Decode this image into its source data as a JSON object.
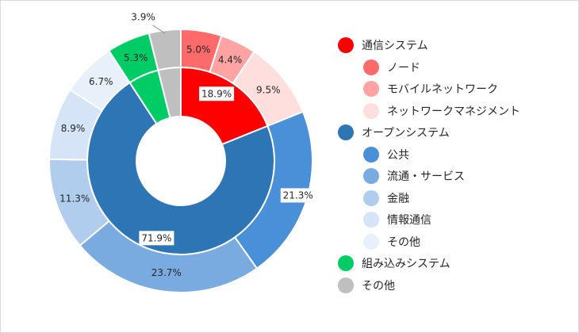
{
  "chart_data": {
    "type": "pie",
    "subtype": "nested-donut",
    "inner_ring": {
      "slices": [
        {
          "name": "通信システム",
          "value": 18.9,
          "label": "18.9%",
          "color": "#ff0000"
        },
        {
          "name": "オープンシステム",
          "value": 71.9,
          "label": "71.9%",
          "color": "#2e75b6"
        },
        {
          "name": "組み込みシステム",
          "value": 5.3,
          "label": "",
          "color": "#00cc66"
        },
        {
          "name": "その他",
          "value": 3.9,
          "label": "",
          "color": "#bfbfbf"
        }
      ]
    },
    "outer_ring": {
      "slices": [
        {
          "name": "ノード",
          "value": 5.0,
          "label": "5.0%",
          "color": "#ff6b6b"
        },
        {
          "name": "モバイルネットワーク",
          "value": 4.4,
          "label": "4.4%",
          "color": "#ffa3a3"
        },
        {
          "name": "ネットワークマネジメント",
          "value": 9.5,
          "label": "9.5%",
          "color": "#ffdede"
        },
        {
          "name": "公共",
          "value": 21.3,
          "label": "21.3%",
          "color": "#4a90d9"
        },
        {
          "name": "流通・サービス",
          "value": 23.7,
          "label": "23.7%",
          "color": "#7aabe0"
        },
        {
          "name": "金融",
          "value": 11.3,
          "label": "11.3%",
          "color": "#b0cdee"
        },
        {
          "name": "情報通信",
          "value": 8.9,
          "label": "8.9%",
          "color": "#d5e4f7"
        },
        {
          "name": "その他",
          "value": 6.7,
          "label": "6.7%",
          "color": "#e8f0fa"
        },
        {
          "name": "組み込みシステム",
          "value": 5.3,
          "label": "5.3%",
          "color": "#00cc66"
        },
        {
          "name": "その他",
          "value": 3.9,
          "label": "3.9%",
          "color": "#bfbfbf"
        }
      ]
    },
    "legend": {
      "position": "right",
      "entries": [
        {
          "label": "通信システム",
          "color": "#ff0000",
          "level": 0
        },
        {
          "label": "ノード",
          "color": "#ff6b6b",
          "level": 1
        },
        {
          "label": "モバイルネットワーク",
          "color": "#ffa3a3",
          "level": 1
        },
        {
          "label": "ネットワークマネジメント",
          "color": "#ffdede",
          "level": 1
        },
        {
          "label": "オープンシステム",
          "color": "#2e75b6",
          "level": 0
        },
        {
          "label": "公共",
          "color": "#4a90d9",
          "level": 1
        },
        {
          "label": "流通・サービス",
          "color": "#7aabe0",
          "level": 1
        },
        {
          "label": "金融",
          "color": "#b0cdee",
          "level": 1
        },
        {
          "label": "情報通信",
          "color": "#d5e4f7",
          "level": 1
        },
        {
          "label": "その他",
          "color": "#e8f0fa",
          "level": 1
        },
        {
          "label": "組み込みシステム",
          "color": "#00cc66",
          "level": 0
        },
        {
          "label": "その他",
          "color": "#bfbfbf",
          "level": 0
        }
      ]
    }
  }
}
